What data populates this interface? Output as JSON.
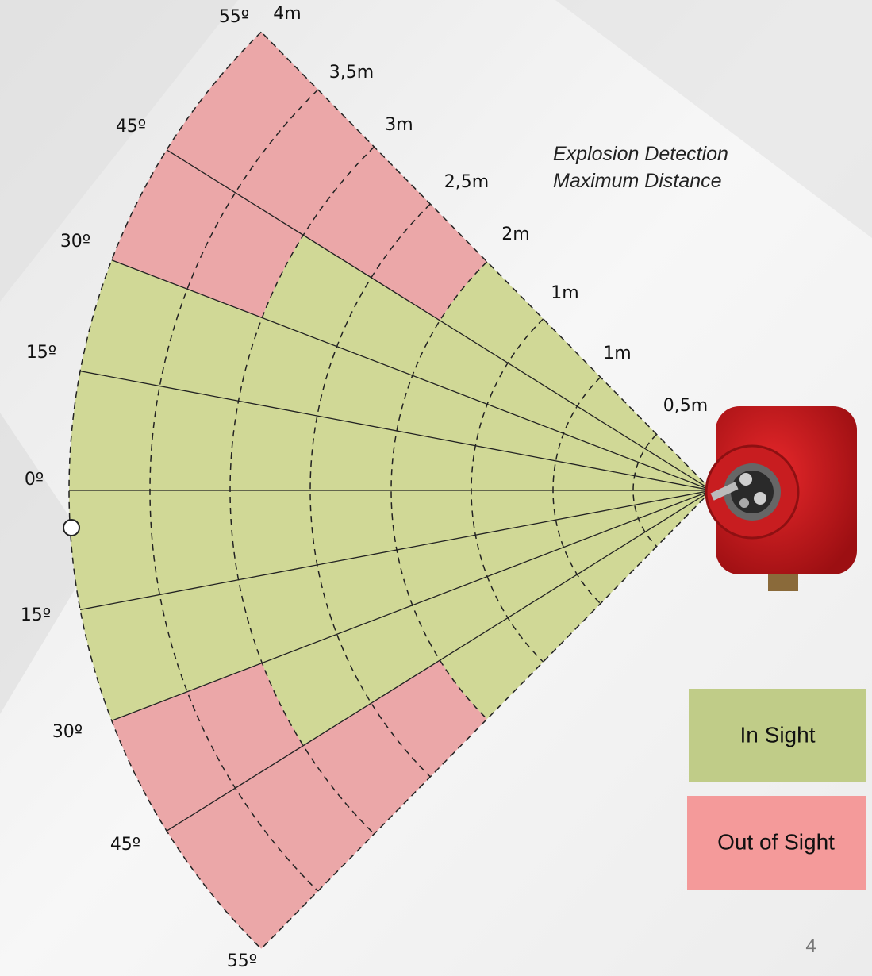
{
  "annotation": [
    "Explosion Detection",
    "Maximum Distance"
  ],
  "angles": {
    "upper": [
      "55º",
      "45º",
      "30º",
      "15º"
    ],
    "center": "0º",
    "lower": [
      "15º",
      "30º",
      "45º",
      "55º"
    ]
  },
  "distances": [
    "4m",
    "3,5m",
    "3m",
    "2,5m",
    "2m",
    "1m",
    "1m",
    "0,5m"
  ],
  "legend": [
    "In Sight",
    "Out of Sight"
  ],
  "page_number": "4"
}
